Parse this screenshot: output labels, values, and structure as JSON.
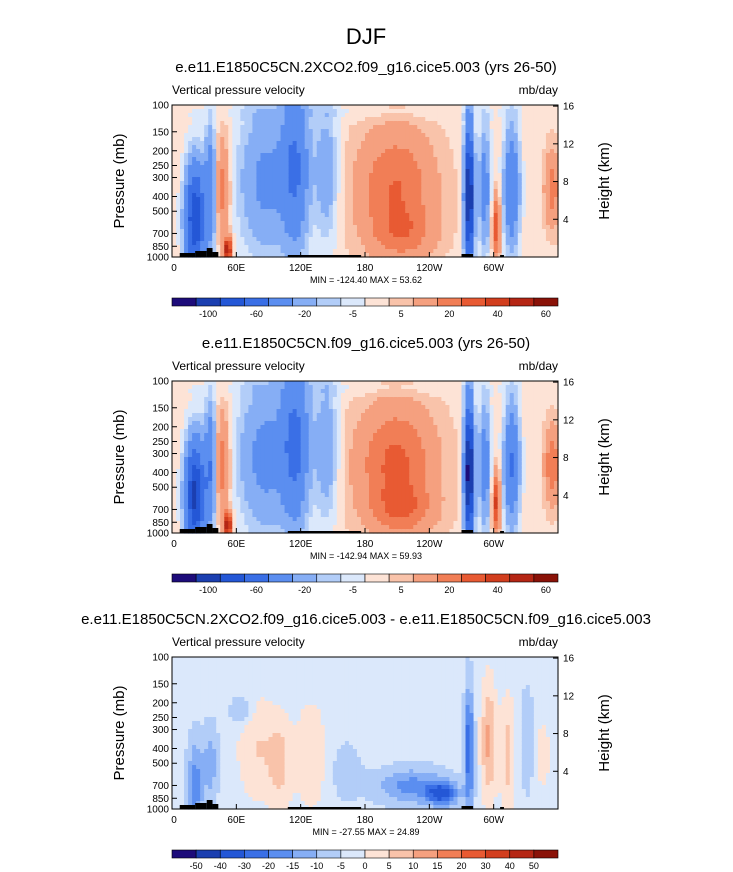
{
  "figure": {
    "title": "DJF"
  },
  "chart_data": [
    {
      "type": "heatmap",
      "title": "e.e11.E1850C5CN.2XCO2.f09_g16.cice5.003 (yrs 26-50)",
      "left_label": "Vertical pressure velocity",
      "right_label": "mb/day",
      "ylabel": "Pressure (mb)",
      "y2label": "Height (km)",
      "x_ticks": [
        "0",
        "60E",
        "120E",
        "180",
        "120W",
        "60W"
      ],
      "y_ticks": [
        "100",
        "150",
        "200",
        "250",
        "300",
        "400",
        "500",
        "700",
        "850",
        "1000"
      ],
      "y2_ticks": [
        "16",
        "12",
        "8",
        "4"
      ],
      "minmax": "MIN = -124.40  MAX =  53.62",
      "colorbar_labels": [
        "-100",
        "-60",
        "-20",
        "-5",
        "5",
        "20",
        "40",
        "60"
      ],
      "colors": [
        "#1d0c7a",
        "#1b3fb0",
        "#2457d6",
        "#3a6fe6",
        "#5b8ef0",
        "#86aef5",
        "#b2cdf8",
        "#dbe8fb",
        "#fde3d6",
        "#f9c3aa",
        "#f5a07f",
        "#f17e56",
        "#e85a33",
        "#d23e1e",
        "#b52614",
        "#8a1208"
      ]
    },
    {
      "type": "heatmap",
      "title": "e.e11.E1850C5CN.f09_g16.cice5.003 (yrs 26-50)",
      "left_label": "Vertical pressure velocity",
      "right_label": "mb/day",
      "ylabel": "Pressure (mb)",
      "y2label": "Height (km)",
      "x_ticks": [
        "0",
        "60E",
        "120E",
        "180",
        "120W",
        "60W"
      ],
      "y_ticks": [
        "100",
        "150",
        "200",
        "250",
        "300",
        "400",
        "500",
        "700",
        "850",
        "1000"
      ],
      "y2_ticks": [
        "16",
        "12",
        "8",
        "4"
      ],
      "minmax": "MIN = -142.94  MAX =  59.93",
      "colorbar_labels": [
        "-100",
        "-60",
        "-20",
        "-5",
        "5",
        "20",
        "40",
        "60"
      ],
      "colors": [
        "#1d0c7a",
        "#1b3fb0",
        "#2457d6",
        "#3a6fe6",
        "#5b8ef0",
        "#86aef5",
        "#b2cdf8",
        "#dbe8fb",
        "#fde3d6",
        "#f9c3aa",
        "#f5a07f",
        "#f17e56",
        "#e85a33",
        "#d23e1e",
        "#b52614",
        "#8a1208"
      ]
    },
    {
      "type": "heatmap",
      "title": "e.e11.E1850C5CN.2XCO2.f09_g16.cice5.003 - e.e11.E1850C5CN.f09_g16.cice5.003",
      "left_label": "Vertical pressure velocity",
      "right_label": "mb/day",
      "ylabel": "Pressure (mb)",
      "y2label": "Height (km)",
      "x_ticks": [
        "0",
        "60E",
        "120E",
        "180",
        "120W",
        "60W"
      ],
      "y_ticks": [
        "100",
        "150",
        "200",
        "250",
        "300",
        "400",
        "500",
        "700",
        "850",
        "1000"
      ],
      "y2_ticks": [
        "16",
        "12",
        "8",
        "4"
      ],
      "minmax": "MIN = -27.55  MAX =  24.89",
      "colorbar_labels": [
        "-50",
        "-40",
        "-30",
        "-20",
        "-15",
        "-10",
        "-5",
        "0",
        "5",
        "10",
        "15",
        "20",
        "30",
        "40",
        "50"
      ],
      "colors": [
        "#1d0c7a",
        "#1b3fb0",
        "#2457d6",
        "#3a6fe6",
        "#5b8ef0",
        "#86aef5",
        "#b2cdf8",
        "#dbe8fb",
        "#fde3d6",
        "#f9c3aa",
        "#f5a07f",
        "#f17e56",
        "#e85a33",
        "#d23e1e",
        "#b52614",
        "#8a1208"
      ]
    }
  ]
}
